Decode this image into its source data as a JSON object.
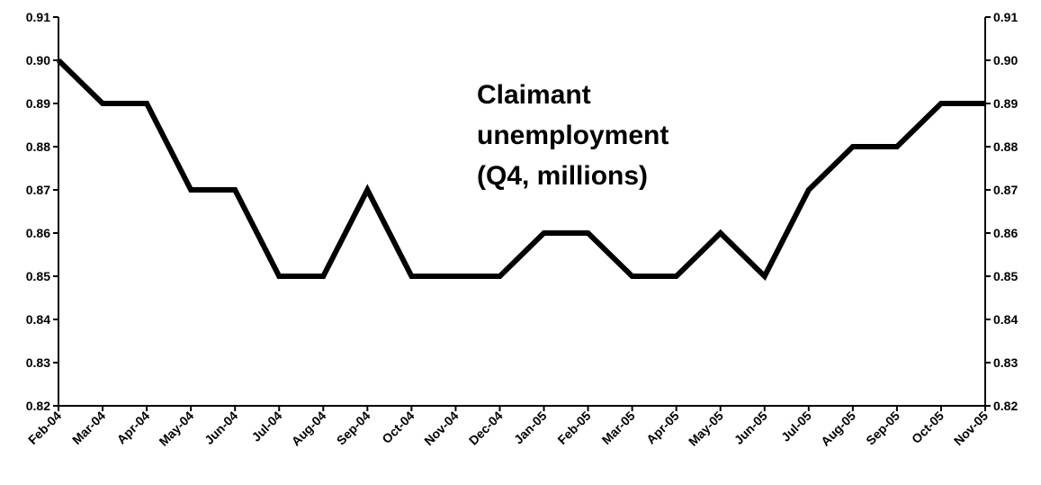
{
  "chart_data": {
    "type": "line",
    "annotation": [
      "Claimant",
      "unemployment",
      "(Q4, millions)"
    ],
    "categories": [
      "Feb-04",
      "Mar-04",
      "Apr-04",
      "May-04",
      "Jun-04",
      "Jul-04",
      "Aug-04",
      "Sep-04",
      "Oct-04",
      "Nov-04",
      "Dec-04",
      "Jan-05",
      "Feb-05",
      "Mar-05",
      "Apr-05",
      "May-05",
      "Jun-05",
      "Jul-05",
      "Aug-05",
      "Sep-05",
      "Oct-05",
      "Nov-05"
    ],
    "values": [
      0.9,
      0.89,
      0.89,
      0.87,
      0.87,
      0.85,
      0.85,
      0.87,
      0.85,
      0.85,
      0.85,
      0.86,
      0.86,
      0.85,
      0.85,
      0.86,
      0.85,
      0.87,
      0.88,
      0.88,
      0.89,
      0.89
    ],
    "color": "#000000",
    "ylim": [
      0.82,
      0.91
    ],
    "yticks": [
      0.82,
      0.83,
      0.84,
      0.85,
      0.86,
      0.87,
      0.88,
      0.89,
      {
        "value": 0.9,
        "label": "0.90"
      },
      0.91
    ],
    "y2lim": [
      0.82,
      0.91
    ],
    "y2ticks": [
      0.82,
      0.83,
      0.84,
      0.85,
      0.86,
      0.87,
      0.88,
      0.89,
      {
        "value": 0.9,
        "label": "0.90"
      },
      0.91
    ],
    "grid": false
  }
}
